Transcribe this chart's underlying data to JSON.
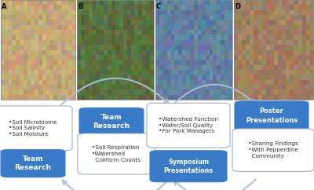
{
  "background_color": "white",
  "photo_bg": "#e8e0d0",
  "photo_labels": [
    "A",
    "B",
    "C",
    "D"
  ],
  "photo_colors": [
    [
      "#c8b090",
      "#a89070",
      "#d0c0a0"
    ],
    [
      "#506838",
      "#384828",
      "#6a8850"
    ],
    [
      "#607850",
      "#404030",
      "#789060"
    ],
    [
      "#b09068",
      "#786040",
      "#c8a878"
    ]
  ],
  "arrow_color": "#aac0d8",
  "blue_box_color": "#3a7bc8",
  "blue_box_edge": "#3a7bc8",
  "white_box_edge": "#a0b0c0",
  "box1_text": "•Soil Microbiome\n•Soil Salinity\n•Soil Moisture",
  "box2_text": "Team\nResearch",
  "box3_text": "Team\nResearch",
  "box4_text": "•Soil Respiration\n•Watershed\n  Coliform Counts",
  "box5_text": "•Watershed Function\n•Water/Soil Quality\n•For Park Managers",
  "box6_text": "Symposium\nPresentations",
  "box7_text": "Poster\nPresentations",
  "box8_text": "•Sharing Findings\n•With Pepperdine\n  Community"
}
